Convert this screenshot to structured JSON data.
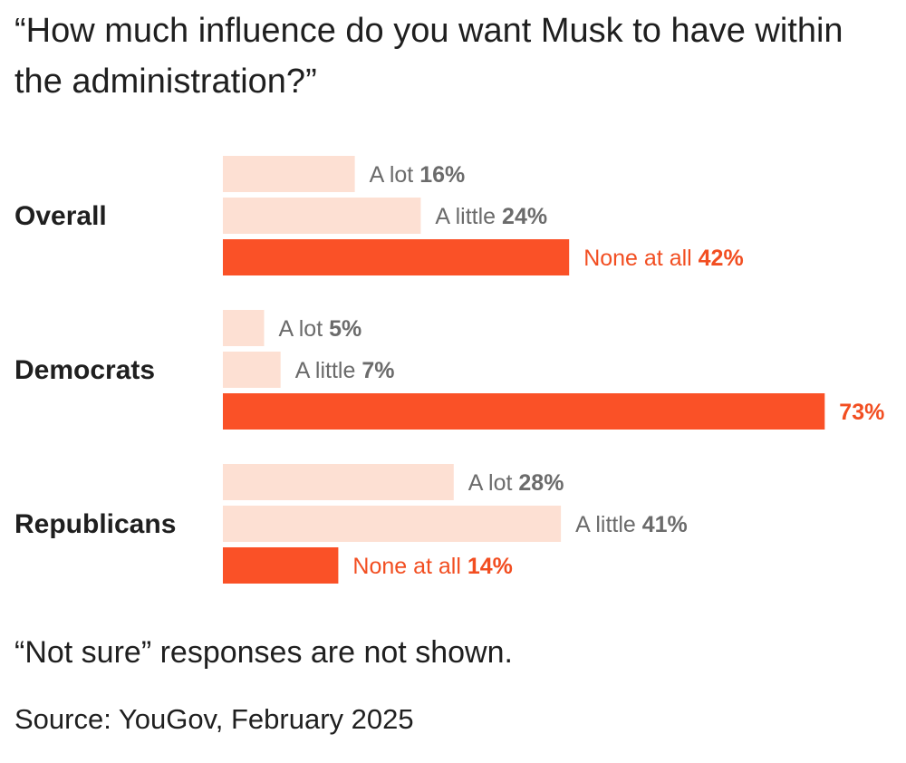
{
  "title": "“How much influence do you want Musk to have within the administration?”",
  "note": "“Not sure” responses are not shown.",
  "source": "Source: YouGov, February 2025",
  "colors": {
    "light_bar": "#fde0d3",
    "strong_bar": "#fa5127",
    "label_gray": "#6b6b6b",
    "label_strong": "#f24e21",
    "group_label": "#1f1f1f"
  },
  "chart_data": {
    "type": "bar",
    "orientation": "horizontal",
    "unit": "%",
    "groups": [
      {
        "name": "Overall",
        "bars": [
          {
            "label": "A lot",
            "value": 16,
            "value_text": "16%"
          },
          {
            "label": "A little",
            "value": 24,
            "value_text": "24%"
          },
          {
            "label": "None at all",
            "value": 42,
            "value_text": "42%"
          }
        ]
      },
      {
        "name": "Democrats",
        "bars": [
          {
            "label": "A lot",
            "value": 5,
            "value_text": "5%"
          },
          {
            "label": "A little",
            "value": 7,
            "value_text": "7%"
          },
          {
            "label": "",
            "value": 73,
            "value_text": "73%"
          }
        ]
      },
      {
        "name": "Republicans",
        "bars": [
          {
            "label": "A lot",
            "value": 28,
            "value_text": "28%"
          },
          {
            "label": "A little",
            "value": 41,
            "value_text": "41%"
          },
          {
            "label": "None at all",
            "value": 14,
            "value_text": "14%"
          }
        ]
      }
    ],
    "xlim": [
      0,
      73
    ]
  }
}
